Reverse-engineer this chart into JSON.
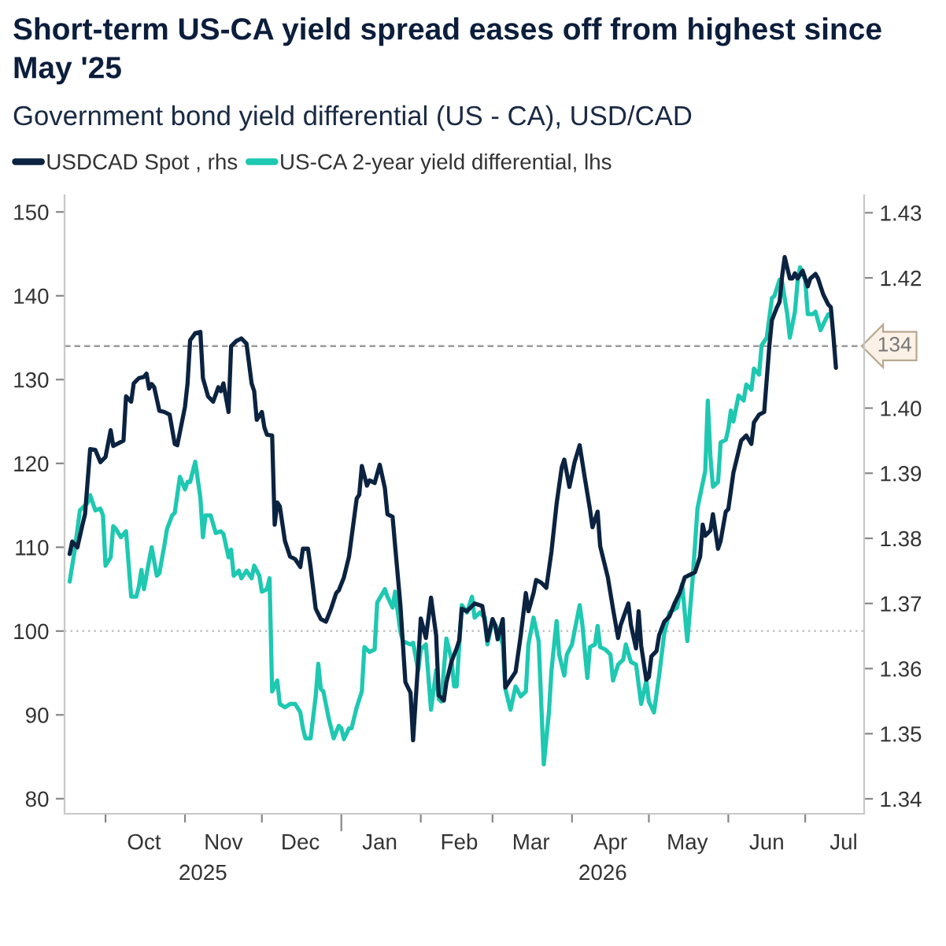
{
  "chart_data": {
    "type": "line",
    "title": "Short-term US-CA yield spread eases off from highest since May '25",
    "subtitle": "Government bond yield differential (US - CA), USD/CAD",
    "annotations": [
      "2025",
      "2026"
    ],
    "xlim": [
      "2025-09-15",
      "2026-07-24"
    ],
    "xticks": [
      {
        "value": "2025-10-01",
        "label": null
      },
      {
        "value": "2025-11-01",
        "label": null
      },
      {
        "value": "2025-12-01",
        "label": null
      },
      {
        "value": "2026-01-01",
        "label": null
      },
      {
        "value": "2026-02-01",
        "label": null
      },
      {
        "value": "2026-03-01",
        "label": null
      },
      {
        "value": "2026-04-01",
        "label": null
      },
      {
        "value": "2026-05-01",
        "label": null
      },
      {
        "value": "2026-06-01",
        "label": null
      },
      {
        "value": "2026-07-01",
        "label": null
      },
      {
        "value": "2025-10-16",
        "label": "Oct"
      },
      {
        "value": "2025-11-16",
        "label": "Nov"
      },
      {
        "value": "2025-12-16",
        "label": "Dec"
      },
      {
        "value": "2026-01-16",
        "label": "Jan"
      },
      {
        "value": "2026-02-16",
        "label": "Feb"
      },
      {
        "value": "2026-03-16",
        "label": "Mar"
      },
      {
        "value": "2026-04-16",
        "label": "Apr"
      },
      {
        "value": "2026-05-16",
        "label": "May"
      },
      {
        "value": "2026-06-16",
        "label": "Jun"
      },
      {
        "value": "2026-07-16",
        "label": "Jul"
      }
    ],
    "ylim": [
      78.2,
      152
    ],
    "yticks": [
      80,
      90,
      100,
      110,
      120,
      130,
      140,
      150
    ],
    "y2lim": [
      1.3377,
      1.4327
    ],
    "y2ticks": [
      1.34,
      1.35,
      1.36,
      1.37,
      1.38,
      1.39,
      {
        "value": 1.4,
        "label": "1.40"
      },
      1.42,
      1.43
    ],
    "legend": "top left",
    "ref_lines": [
      {
        "axis": "y",
        "value": 134,
        "label": "134",
        "color": "#9a9a9a",
        "line_style": "dashed"
      },
      {
        "axis": "y",
        "value": 100,
        "color": "#c4c4c4",
        "line_style": "dotted"
      }
    ],
    "series": [
      {
        "name": "USDCAD Spot , rhs",
        "color": "#0b2341",
        "axis": "y2",
        "x": [
          "2025-09-17",
          "2025-09-18",
          "2025-09-20",
          "2025-09-22",
          "2025-09-23",
          "2025-09-25",
          "2025-09-27",
          "2025-09-29",
          "2025-10-01",
          "2025-10-03",
          "2025-10-04",
          "2025-10-08",
          "2025-10-09",
          "2025-10-11",
          "2025-10-12",
          "2025-10-14",
          "2025-10-16",
          "2025-10-17",
          "2025-10-18",
          "2025-10-19",
          "2025-10-20",
          "2025-10-22",
          "2025-10-24",
          "2025-10-26",
          "2025-10-28",
          "2025-10-29",
          "2025-11-01",
          "2025-11-02",
          "2025-11-03",
          "2025-11-05",
          "2025-11-07",
          "2025-11-08",
          "2025-11-10",
          "2025-11-12",
          "2025-11-14",
          "2025-11-15",
          "2025-11-16",
          "2025-11-18",
          "2025-11-19",
          "2025-11-21",
          "2025-11-23",
          "2025-11-25",
          "2025-11-27",
          "2025-11-28",
          "2025-11-29",
          "2025-12-01",
          "2025-12-02",
          "2025-12-03",
          "2025-12-05",
          "2025-12-06",
          "2025-12-07",
          "2025-12-08",
          "2025-12-10",
          "2025-12-12",
          "2025-12-14",
          "2025-12-16",
          "2025-12-17",
          "2025-12-19",
          "2025-12-20",
          "2025-12-22",
          "2025-12-24",
          "2025-12-26",
          "2025-12-28",
          "2025-12-30",
          "2025-12-31",
          "2026-01-02",
          "2026-01-04",
          "2026-01-07",
          "2026-01-08",
          "2026-01-09",
          "2026-01-11",
          "2026-01-12",
          "2026-01-14",
          "2026-01-16",
          "2026-01-18",
          "2026-01-19",
          "2026-01-21",
          "2026-01-22",
          "2026-01-24",
          "2026-01-26",
          "2026-01-28",
          "2026-01-29",
          "2026-01-31",
          "2026-02-01",
          "2026-02-03",
          "2026-02-05",
          "2026-02-07",
          "2026-02-08",
          "2026-02-10",
          "2026-02-11",
          "2026-02-13",
          "2026-02-15",
          "2026-02-16",
          "2026-02-17",
          "2026-02-19",
          "2026-02-22",
          "2026-02-25",
          "2026-02-26",
          "2026-02-27",
          "2026-03-01",
          "2026-03-02",
          "2026-03-03",
          "2026-03-05",
          "2026-03-06",
          "2026-03-08",
          "2026-03-10",
          "2026-03-12",
          "2026-03-14",
          "2026-03-15",
          "2026-03-17",
          "2026-03-18",
          "2026-03-20",
          "2026-03-22",
          "2026-03-24",
          "2026-03-26",
          "2026-03-28",
          "2026-03-29",
          "2026-03-31",
          "2026-04-02",
          "2026-04-04",
          "2026-04-06",
          "2026-04-08",
          "2026-04-09",
          "2026-04-11",
          "2026-04-12",
          "2026-04-15",
          "2026-04-17",
          "2026-04-19",
          "2026-04-20",
          "2026-04-23",
          "2026-04-24",
          "2026-04-26",
          "2026-04-27",
          "2026-04-28",
          "2026-04-30",
          "2026-05-01",
          "2026-05-02",
          "2026-05-04",
          "2026-05-05",
          "2026-05-07",
          "2026-05-09",
          "2026-05-11",
          "2026-05-13",
          "2026-05-15",
          "2026-05-17",
          "2026-05-19",
          "2026-05-21",
          "2026-05-22",
          "2026-05-23",
          "2026-05-25",
          "2026-05-26",
          "2026-05-28",
          "2026-05-29",
          "2026-05-31",
          "2026-06-01",
          "2026-06-03",
          "2026-06-04",
          "2026-06-06",
          "2026-06-08",
          "2026-06-10",
          "2026-06-11",
          "2026-06-13",
          "2026-06-15",
          "2026-06-17",
          "2026-06-18",
          "2026-06-20",
          "2026-06-21",
          "2026-06-22",
          "2026-06-23",
          "2026-06-25",
          "2026-06-26",
          "2026-06-27",
          "2026-06-28",
          "2026-06-30",
          "2026-07-02",
          "2026-07-03",
          "2026-07-05",
          "2026-07-06",
          "2026-07-08",
          "2026-07-10",
          "2026-07-11",
          "2026-07-12",
          "2026-07-13"
        ],
        "values": [
          1.3776,
          1.3795,
          1.3786,
          1.3821,
          1.3837,
          1.3937,
          1.3936,
          1.3917,
          1.3925,
          1.3966,
          1.3942,
          1.395,
          1.4018,
          1.401,
          1.4038,
          1.4046,
          1.4048,
          1.4053,
          1.403,
          1.4037,
          1.4032,
          1.3996,
          1.3994,
          1.399,
          1.3945,
          1.3943,
          1.4002,
          1.4038,
          1.4104,
          1.4115,
          1.4117,
          1.4046,
          1.4018,
          1.401,
          1.4032,
          1.4026,
          1.4038,
          1.3994,
          1.4095,
          1.4103,
          1.4107,
          1.4099,
          1.4038,
          1.4026,
          1.3982,
          1.3994,
          1.397,
          1.3959,
          1.3958,
          1.3821,
          1.3855,
          1.3849,
          1.3796,
          1.3772,
          1.3768,
          1.3756,
          1.3784,
          1.3784,
          1.3756,
          1.3692,
          1.3676,
          1.3672,
          1.3692,
          1.3716,
          1.372,
          1.374,
          1.3772,
          1.3861,
          1.3867,
          1.3911,
          1.3881,
          1.3889,
          1.3885,
          1.3913,
          1.3877,
          1.3837,
          1.3833,
          1.3788,
          1.37,
          1.3579,
          1.3563,
          1.349,
          1.3611,
          1.3677,
          1.3647,
          1.3709,
          1.3651,
          1.3559,
          1.3551,
          1.3579,
          1.3611,
          1.3631,
          1.3643,
          1.3692,
          1.3688,
          1.37,
          1.3696,
          1.3672,
          1.3643,
          1.3676,
          1.3667,
          1.3645,
          1.3676,
          1.3571,
          1.3583,
          1.3595,
          1.3651,
          1.3716,
          1.3688,
          1.3716,
          1.3736,
          1.3732,
          1.3724,
          1.378,
          1.3853,
          1.3909,
          1.3921,
          1.3879,
          1.3917,
          1.3943,
          1.3893,
          1.3845,
          1.3817,
          1.3841,
          1.3788,
          1.374,
          1.3692,
          1.3647,
          1.3667,
          1.37,
          1.3667,
          1.3631,
          1.3688,
          1.3635,
          1.3583,
          1.3587,
          1.3619,
          1.3627,
          1.3651,
          1.3672,
          1.368,
          1.37,
          1.3716,
          1.374,
          1.3744,
          1.3748,
          1.3772,
          1.3821,
          1.3804,
          1.3812,
          1.3837,
          1.3784,
          1.3796,
          1.3841,
          1.3845,
          1.3901,
          1.3917,
          1.395,
          1.3958,
          1.3945,
          1.3978,
          1.399,
          1.3994,
          1.4095,
          1.4135,
          1.4155,
          1.4163,
          1.4203,
          1.4232,
          1.4199,
          1.4199,
          1.4207,
          1.4199,
          1.4211,
          1.4187,
          1.4199,
          1.4206,
          1.4199,
          1.4175,
          1.4159,
          1.4155,
          1.4111,
          1.4062
        ]
      },
      {
        "name": "US-CA 2-year yield differential, lhs",
        "color": "#1ec8b1",
        "axis": "y",
        "x": [
          "2025-09-17",
          "2025-09-19",
          "2025-09-21",
          "2025-09-22",
          "2025-09-24",
          "2025-09-25",
          "2025-09-27",
          "2025-09-29",
          "2025-09-30",
          "2025-10-01",
          "2025-10-03",
          "2025-10-04",
          "2025-10-05",
          "2025-10-07",
          "2025-10-09",
          "2025-10-11",
          "2025-10-13",
          "2025-10-14",
          "2025-10-15",
          "2025-10-16",
          "2025-10-18",
          "2025-10-19",
          "2025-10-21",
          "2025-10-22",
          "2025-10-24",
          "2025-10-25",
          "2025-10-27",
          "2025-10-28",
          "2025-10-30",
          "2025-11-01",
          "2025-11-02",
          "2025-11-03",
          "2025-11-05",
          "2025-11-07",
          "2025-11-08",
          "2025-11-09",
          "2025-11-11",
          "2025-11-13",
          "2025-11-15",
          "2025-11-16",
          "2025-11-18",
          "2025-11-19",
          "2025-11-20",
          "2025-11-22",
          "2025-11-23",
          "2025-11-25",
          "2025-11-27",
          "2025-11-28",
          "2025-11-30",
          "2025-12-01",
          "2025-12-03",
          "2025-12-04",
          "2025-12-05",
          "2025-12-07",
          "2025-12-08",
          "2025-12-10",
          "2025-12-12",
          "2025-12-14",
          "2025-12-16",
          "2025-12-17",
          "2025-12-18",
          "2025-12-20",
          "2025-12-22",
          "2025-12-23",
          "2025-12-24",
          "2025-12-25",
          "2025-12-27",
          "2025-12-29",
          "2025-12-31",
          "2026-01-01",
          "2026-01-02",
          "2026-01-04",
          "2026-01-05",
          "2026-01-07",
          "2026-01-09",
          "2026-01-10",
          "2026-01-12",
          "2026-01-14",
          "2026-01-15",
          "2026-01-18",
          "2026-01-19",
          "2026-01-21",
          "2026-01-22",
          "2026-01-24",
          "2026-01-25",
          "2026-01-28",
          "2026-01-29",
          "2026-01-31",
          "2026-02-01",
          "2026-02-03",
          "2026-02-05",
          "2026-02-07",
          "2026-02-08",
          "2026-02-09",
          "2026-02-11",
          "2026-02-13",
          "2026-02-14",
          "2026-02-15",
          "2026-02-17",
          "2026-02-19",
          "2026-02-21",
          "2026-02-22",
          "2026-02-24",
          "2026-02-26",
          "2026-02-27",
          "2026-03-01",
          "2026-03-03",
          "2026-03-05",
          "2026-03-06",
          "2026-03-08",
          "2026-03-10",
          "2026-03-12",
          "2026-03-14",
          "2026-03-15",
          "2026-03-17",
          "2026-03-19",
          "2026-03-21",
          "2026-03-23",
          "2026-03-24",
          "2026-03-26",
          "2026-03-27",
          "2026-03-29",
          "2026-03-30",
          "2026-04-01",
          "2026-04-04",
          "2026-04-05",
          "2026-04-07",
          "2026-04-08",
          "2026-04-10",
          "2026-04-11",
          "2026-04-12",
          "2026-04-14",
          "2026-04-16",
          "2026-04-17",
          "2026-04-19",
          "2026-04-21",
          "2026-04-22",
          "2026-04-24",
          "2026-04-26",
          "2026-04-28",
          "2026-04-30",
          "2026-05-01",
          "2026-05-03",
          "2026-05-05",
          "2026-05-07",
          "2026-05-09",
          "2026-05-12",
          "2026-05-14",
          "2026-05-16",
          "2026-05-18",
          "2026-05-20",
          "2026-05-23",
          "2026-05-24",
          "2026-05-25",
          "2026-05-26",
          "2026-05-28",
          "2026-05-29",
          "2026-05-31",
          "2026-06-01",
          "2026-06-02",
          "2026-06-03",
          "2026-06-05",
          "2026-06-07",
          "2026-06-08",
          "2026-06-10",
          "2026-06-11",
          "2026-06-13",
          "2026-06-14",
          "2026-06-16",
          "2026-06-18",
          "2026-06-19",
          "2026-06-21",
          "2026-06-22",
          "2026-06-24",
          "2026-06-25",
          "2026-06-27",
          "2026-06-28",
          "2026-06-29",
          "2026-07-01",
          "2026-07-02",
          "2026-07-04",
          "2026-07-05",
          "2026-07-07",
          "2026-07-09",
          "2026-07-10",
          "2026-07-11"
        ],
        "values": [
          105.9,
          109.7,
          114.4,
          114.7,
          115.3,
          116.2,
          114.4,
          114.6,
          113.8,
          107.8,
          108.8,
          112.5,
          112.2,
          111.2,
          111.9,
          104.1,
          104.1,
          105.3,
          107.3,
          105.0,
          108.4,
          110.0,
          106.6,
          106.9,
          110.3,
          112.2,
          113.8,
          114.1,
          118.4,
          116.9,
          117.8,
          117.8,
          120.2,
          115.9,
          111.2,
          113.8,
          113.8,
          111.7,
          111.9,
          111.6,
          108.8,
          109.7,
          106.6,
          107.2,
          106.3,
          107.2,
          106.3,
          107.8,
          106.6,
          104.7,
          105.0,
          106.3,
          92.8,
          94.1,
          91.3,
          90.9,
          91.3,
          91.3,
          90.3,
          88.4,
          87.2,
          87.2,
          92.2,
          96.1,
          93.1,
          92.8,
          89.7,
          87.2,
          88.7,
          88.4,
          87.1,
          88.4,
          88.4,
          90.9,
          92.8,
          98.1,
          97.5,
          97.8,
          103.4,
          105.0,
          104.1,
          102.8,
          104.7,
          100.0,
          98.8,
          98.4,
          98.6,
          95.3,
          97.8,
          98.4,
          90.6,
          95.3,
          91.9,
          91.6,
          99.1,
          96.6,
          93.4,
          93.4,
          103.1,
          102.2,
          104.1,
          101.6,
          102.2,
          101.6,
          98.4,
          101.2,
          100.3,
          98.4,
          93.1,
          90.6,
          93.4,
          92.2,
          92.8,
          98.4,
          101.6,
          98.8,
          84.1,
          90.3,
          95.3,
          101.2,
          97.2,
          94.7,
          97.2,
          98.4,
          103.1,
          100.9,
          94.4,
          98.1,
          98.4,
          100.6,
          98.1,
          97.8,
          97.2,
          94.1,
          96.0,
          96.6,
          98.4,
          96.3,
          96.0,
          91.3,
          94.1,
          91.6,
          90.3,
          94.7,
          99.7,
          102.2,
          102.8,
          105.6,
          98.8,
          105.9,
          114.7,
          119.1,
          127.5,
          120.9,
          117.2,
          117.8,
          122.5,
          122.8,
          124.1,
          126.3,
          125.0,
          128.1,
          127.5,
          129.4,
          128.8,
          131.3,
          130.6,
          134.1,
          135.0,
          139.7,
          140.0,
          141.9,
          141.6,
          137.8,
          135.0,
          138.1,
          141.6,
          143.4,
          141.9,
          137.8,
          137.8,
          138.1,
          135.9,
          137.2,
          137.8,
          137.5
        ]
      }
    ]
  }
}
